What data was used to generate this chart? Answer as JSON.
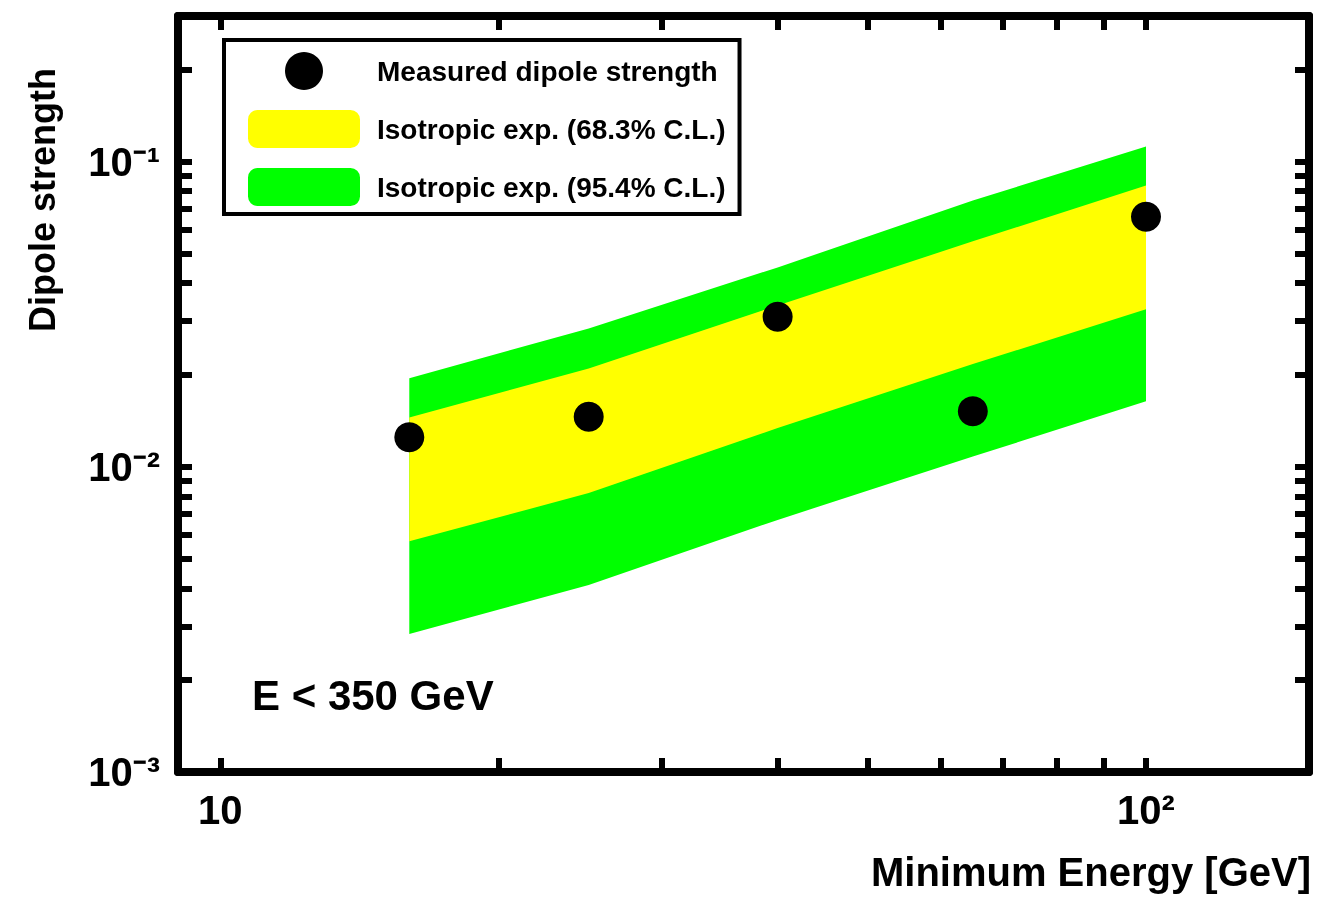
{
  "chart_data": {
    "type": "scatter",
    "xlabel": "Minimum Energy [GeV]",
    "ylabel": "Dipole strength",
    "annotations": [
      "E < 350 GeV"
    ],
    "log": "xy",
    "marker": "circle",
    "legend": "top left",
    "xlim": [
      9,
      150
    ],
    "ylim": [
      0.001,
      0.3
    ],
    "xticks": [
      {
        "value": 10,
        "label": "10"
      },
      {
        "value": 20,
        "label": null
      },
      {
        "value": 30,
        "label": null
      },
      {
        "value": 40,
        "label": null
      },
      {
        "value": 50,
        "label": null
      },
      {
        "value": 60,
        "label": null
      },
      {
        "value": 70,
        "label": null
      },
      {
        "value": 80,
        "label": null
      },
      {
        "value": 90,
        "label": null
      },
      {
        "value": 100,
        "label": "10²"
      }
    ],
    "yticks": [
      {
        "value": 0.001,
        "label": "10⁻³"
      },
      {
        "value": 0.002,
        "label": null
      },
      {
        "value": 0.003,
        "label": null
      },
      {
        "value": 0.004,
        "label": null
      },
      {
        "value": 0.005,
        "label": null
      },
      {
        "value": 0.006,
        "label": null
      },
      {
        "value": 0.007,
        "label": null
      },
      {
        "value": 0.008,
        "label": null
      },
      {
        "value": 0.009,
        "label": null
      },
      {
        "value": 0.01,
        "label": "10⁻²"
      },
      {
        "value": 0.02,
        "label": null
      },
      {
        "value": 0.03,
        "label": null
      },
      {
        "value": 0.04,
        "label": null
      },
      {
        "value": 0.05,
        "label": null
      },
      {
        "value": 0.06,
        "label": null
      },
      {
        "value": 0.07,
        "label": null
      },
      {
        "value": 0.08,
        "label": null
      },
      {
        "value": 0.09,
        "label": null
      },
      {
        "value": 0.1,
        "label": "10⁻¹"
      },
      {
        "value": 0.2,
        "label": null
      }
    ],
    "series": [
      {
        "name": "Measured dipole strength",
        "color": "#000000",
        "x": [
          16,
          25,
          40,
          65,
          100
        ],
        "values": [
          0.0125,
          0.0146,
          0.031,
          0.0152,
          0.066
        ]
      },
      {
        "name": "Isotropic exp. (68.3% C.L.)",
        "type": "area",
        "color": "#ffff00",
        "x": [
          16,
          25,
          40,
          65,
          100
        ],
        "values": [
          null,
          null,
          null,
          null,
          null
        ],
        "lower": [
          0.0057,
          0.0082,
          0.0134,
          0.0217,
          0.0328
        ],
        "upper": [
          0.0145,
          0.021,
          0.0338,
          0.0548,
          0.0835
        ]
      },
      {
        "name": "Isotropic exp. (95.4% C.L.)",
        "type": "area",
        "color": "#00ff00",
        "x": [
          16,
          25,
          40,
          65,
          100
        ],
        "values": [
          null,
          null,
          null,
          null,
          null
        ],
        "lower": [
          0.00283,
          0.0041,
          0.0067,
          0.0108,
          0.0164
        ],
        "upper": [
          0.0195,
          0.0284,
          0.045,
          0.0746,
          0.112
        ]
      }
    ]
  }
}
